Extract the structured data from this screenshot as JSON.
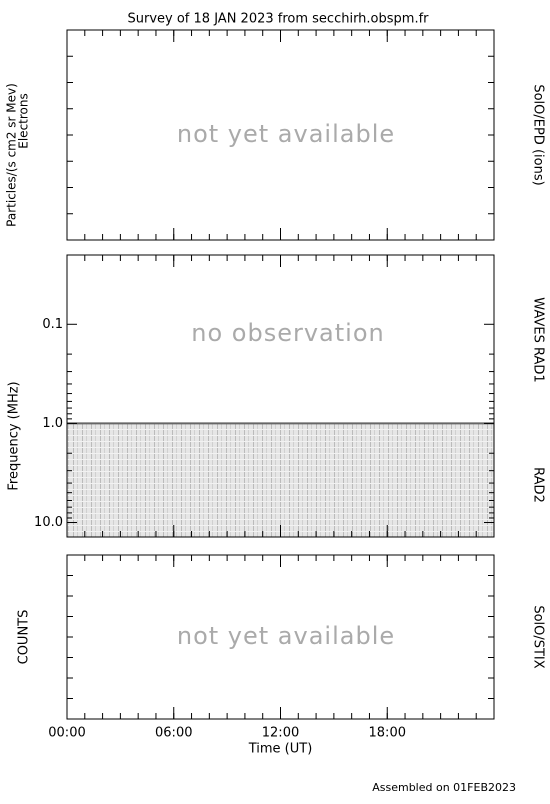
{
  "title": "Survey of 18 JAN 2023 from secchirh.obspm.fr",
  "footer": "Assembled on 01FEB2023",
  "chart_data": [
    {
      "type": "placeholder",
      "ylabel": "Particles/(s cm2 sr Mev)",
      "ylabel2": "Electrons",
      "right_label": "SolO/EPD (ions)",
      "message": "not yet available"
    },
    {
      "type": "spectrogram",
      "ylabel": "Frequency (MHz)",
      "right_labels": [
        "WAVES RAD1",
        "RAD2"
      ],
      "message": "no observation",
      "log_y": true,
      "y_inverted": true,
      "ylim": [
        0.02,
        14
      ],
      "yticks": [
        0.1,
        {
          "value": 1,
          "label": "1.0"
        },
        {
          "value": 10,
          "label": "10.0"
        }
      ]
    },
    {
      "type": "placeholder",
      "ylabel": "COUNTS",
      "right_label": "SolO/STIX",
      "message": "not yet available",
      "xlabel": "Time (UT)",
      "xlim": [
        0,
        24
      ],
      "xticks": [
        {
          "value": 0,
          "label": "00:00"
        },
        {
          "value": 6,
          "label": "06:00"
        },
        {
          "value": 12,
          "label": "12:00"
        },
        {
          "value": 18,
          "label": "18:00"
        }
      ]
    }
  ]
}
